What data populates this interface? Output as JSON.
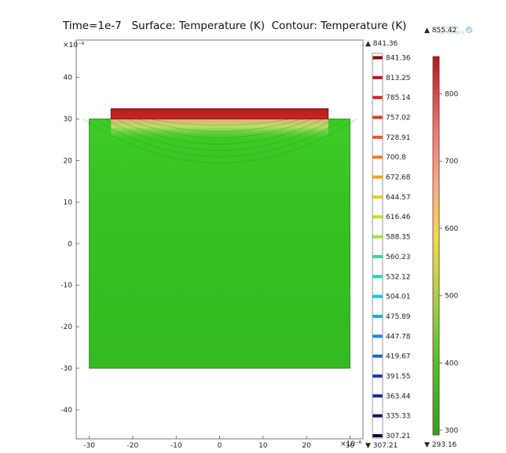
{
  "title": "Time=1e-7   Surface: Temperature (K)  Contour: Temperature (K)",
  "logo": {
    "line1": "COMSOL",
    "line2": "MULTIPHYSICS"
  },
  "chart_data": {
    "type": "heatmap",
    "title": "Time=1e-7   Surface: Temperature (K)  Contour: Temperature (K)",
    "axis_multiplier": {
      "x": "×10⁻⁶",
      "y": "×10⁻⁶"
    },
    "xlim": [
      -33,
      33
    ],
    "ylim": [
      -47,
      49
    ],
    "x_ticks": [
      "-30",
      "-20",
      "-10",
      "0",
      "10",
      "20",
      "30"
    ],
    "y_ticks": [
      "40",
      "30",
      "20",
      "10",
      "0",
      "-10",
      "-20",
      "-30",
      "-40"
    ],
    "x_tick_values": [
      -30,
      -20,
      -10,
      0,
      10,
      20,
      30
    ],
    "y_tick_values": [
      40,
      30,
      20,
      10,
      0,
      -10,
      -20,
      -30,
      -40
    ],
    "domains": [
      {
        "x": [
          -30,
          30
        ],
        "y": [
          -30,
          30
        ]
      },
      {
        "x": [
          -25,
          25
        ],
        "y": [
          30,
          32.5
        ]
      }
    ],
    "contour_legend": {
      "max_label": "▲ 841.36",
      "min_label": "▼ 307.21",
      "levels": [
        "841.36",
        "813.25",
        "785.14",
        "757.02",
        "728.91",
        "700.8",
        "672.68",
        "644.57",
        "616.46",
        "588.35",
        "560.23",
        "532.12",
        "504.01",
        "475.89",
        "447.78",
        "419.67",
        "391.55",
        "363.44",
        "335.33",
        "307.21"
      ],
      "colors": [
        "#8b0000",
        "#c1121f",
        "#d62828",
        "#e03a1e",
        "#f2572b",
        "#f47c20",
        "#f6a21e",
        "#e8d31b",
        "#c9e01b",
        "#9be33a",
        "#3fd29a",
        "#1fd3c8",
        "#17c2e4",
        "#1aa9f0",
        "#1d84e8",
        "#1c5fd2",
        "#163db8",
        "#12268f",
        "#0c186c",
        "#060b46"
      ]
    },
    "surface_legend": {
      "max_label": "▲ 855.42",
      "min_label": "▼ 293.16",
      "vmin": 293.16,
      "vmax": 855.42,
      "tick_values": [
        300,
        400,
        500,
        600,
        700,
        800
      ],
      "tick_labels": [
        "300",
        "400",
        "500",
        "600",
        "700",
        "800"
      ]
    }
  }
}
